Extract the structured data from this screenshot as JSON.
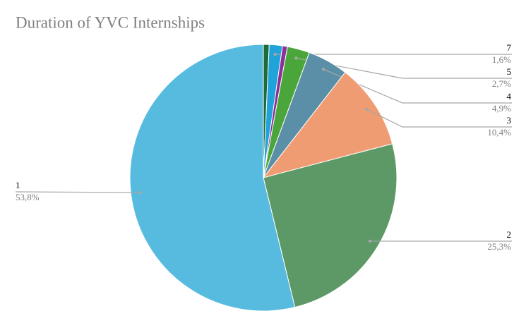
{
  "chart_data": {
    "type": "pie",
    "title": "Duration of YVC Internships",
    "categories": [
      null,
      "7",
      null,
      "5",
      "4",
      "3",
      "2",
      "1"
    ],
    "values": [
      0.7,
      1.6,
      0.6,
      2.7,
      4.9,
      10.4,
      25.3,
      53.8
    ],
    "value_labels": [
      null,
      "1,6%",
      null,
      "2,7%",
      "4,9%",
      "10,4%",
      "25,3%",
      "53,8%"
    ],
    "colors": [
      "#1e6b3a",
      "#1fa3d8",
      "#8b2f9a",
      "#4aa63a",
      "#5b8fa8",
      "#f09c72",
      "#5d9966",
      "#57bbe0"
    ]
  }
}
